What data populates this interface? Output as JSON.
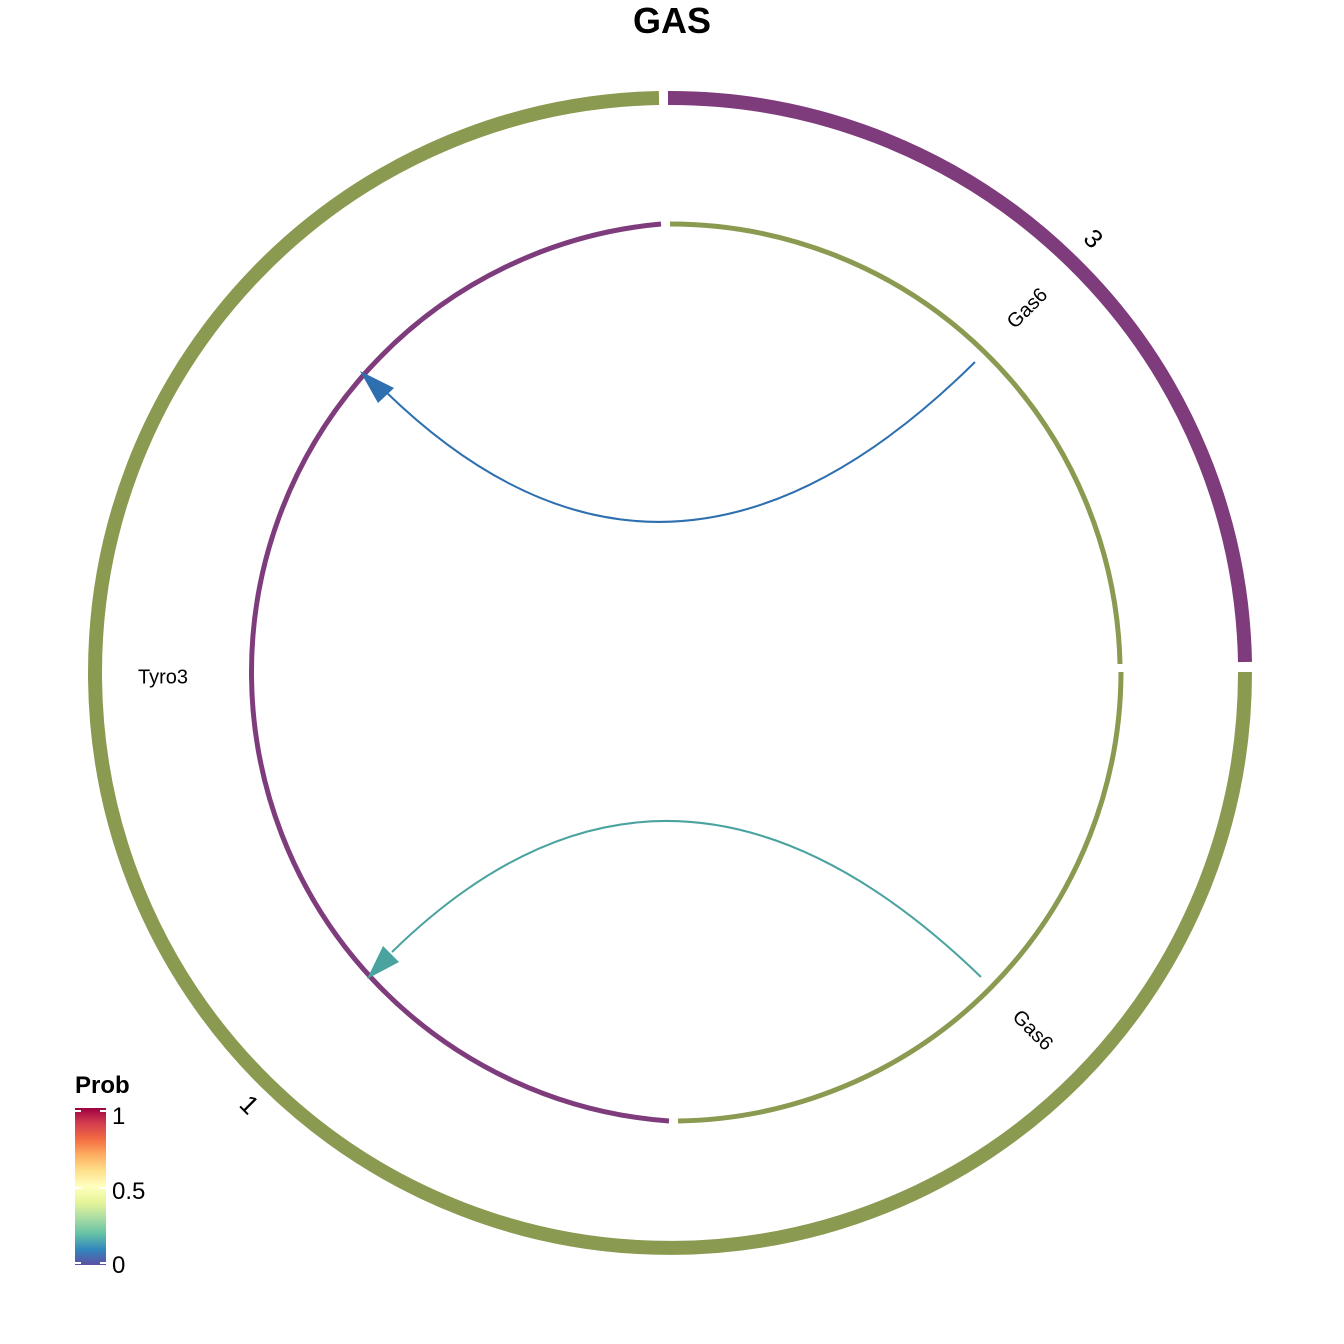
{
  "title": "GAS",
  "groups": [
    {
      "label": "3",
      "color": "#7F3C7C"
    },
    {
      "label": "1",
      "color": "#8A9A50"
    }
  ],
  "genes": [
    {
      "label": "Gas6",
      "group": "1",
      "role": "ligand"
    },
    {
      "label": "Gas6",
      "group": "1",
      "role": "ligand"
    },
    {
      "label": "Tyro3",
      "group": "3",
      "role": "receptor"
    }
  ],
  "links": [
    {
      "from": "Gas6",
      "to": "Tyro3",
      "prob": 0.05,
      "color": "#2E6FAF"
    },
    {
      "from": "Gas6",
      "to": "Tyro3",
      "prob": 0.2,
      "color": "#4BA3A0"
    }
  ],
  "legend": {
    "title": "Prob",
    "ticks": [
      "1",
      "0.5",
      "0"
    ],
    "colormap": "Spectral"
  }
}
